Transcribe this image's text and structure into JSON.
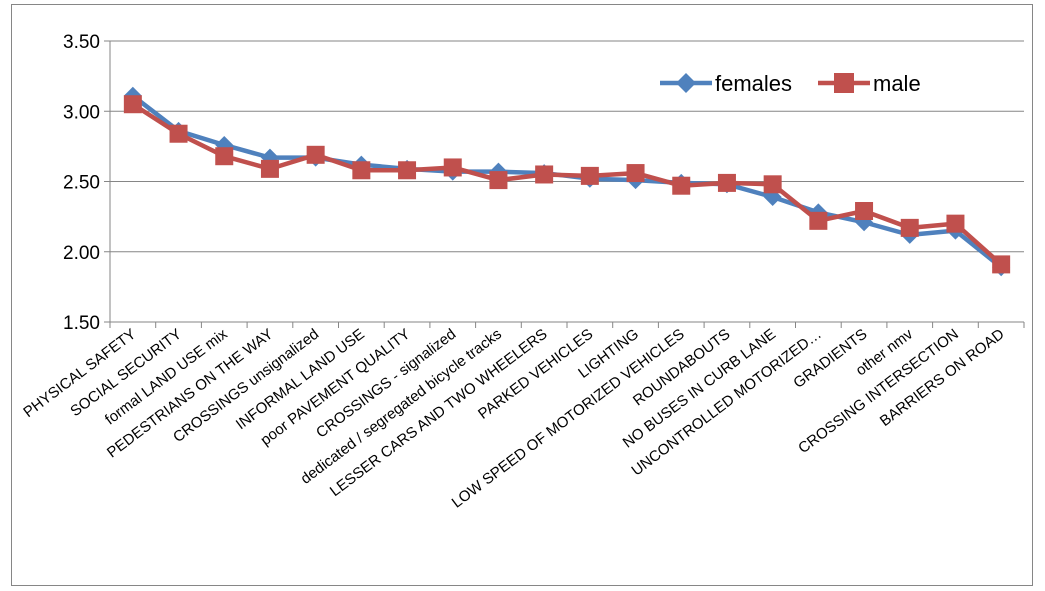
{
  "chart_data": {
    "type": "line",
    "categories": [
      "PHYSICAL SAFETY",
      "SOCIAL SECURITY",
      "formal  LAND USE mix",
      "PEDESTRIANS ON THE WAY",
      "CROSSINGS unsignalized",
      "INFORMAL LAND USE",
      "poor PAVEMENT QUALITY",
      "CROSSINGS - signalized",
      "dedicated / segregated bicycle tracks",
      "LESSER CARS AND TWO WHEELERS",
      "PARKED VEHICLES",
      "LIGHTING",
      "LOW SPEED OF MOTORIZED VEHICLES",
      "ROUNDABOUTS",
      "NO BUSES IN CURB LANE",
      "UNCONTROLLED MOTORIZED…",
      "GRADIENTS",
      "other nmv",
      "CROSSING INTERSECTION",
      "BARRIERS ON ROAD"
    ],
    "series": [
      {
        "name": "females",
        "color": "#4F81BD",
        "marker": "diamond",
        "values": [
          3.11,
          2.86,
          2.76,
          2.67,
          2.67,
          2.62,
          2.59,
          2.57,
          2.57,
          2.56,
          2.52,
          2.51,
          2.49,
          2.48,
          2.39,
          2.28,
          2.21,
          2.12,
          2.15,
          1.89
        ]
      },
      {
        "name": "male",
        "color": "#C0504D",
        "marker": "square",
        "values": [
          3.05,
          2.84,
          2.68,
          2.59,
          2.69,
          2.58,
          2.58,
          2.6,
          2.51,
          2.55,
          2.54,
          2.56,
          2.47,
          2.49,
          2.48,
          2.22,
          2.29,
          2.17,
          2.2,
          1.91
        ]
      }
    ],
    "yaxis": {
      "ticks": [
        "1.50",
        "2.00",
        "2.50",
        "3.00",
        "3.50"
      ],
      "ylim": [
        1.5,
        3.5
      ]
    },
    "grid": "horizontal",
    "legend_position": "top-right"
  }
}
